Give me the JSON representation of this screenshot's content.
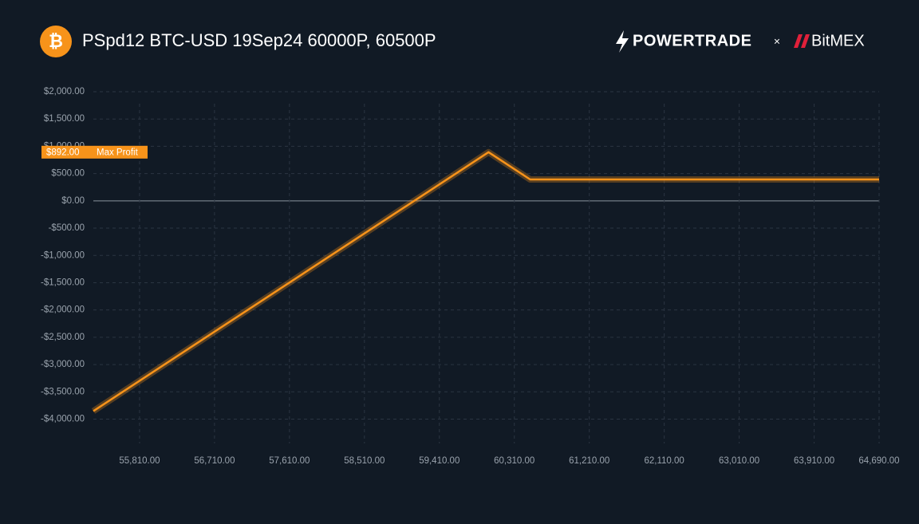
{
  "header": {
    "icon": "₿",
    "brand_left": "POWERTRADE",
    "separator": "×",
    "brand_right": "BitMEX"
  },
  "chart_data": {
    "type": "line",
    "title": "PSpd12 BTC-USD 19Sep24 60000P, 60500P",
    "x": [
      55255,
      60000,
      60500,
      64690
    ],
    "series": [
      {
        "name": "PSpd12 BTC-USD 19Sep24 60000P, 60500P",
        "color": "#f7931a",
        "values": [
          -3853,
          892,
          392,
          392
        ]
      }
    ],
    "xlim": [
      55255,
      64690
    ],
    "ylim": [
      -4300,
      2000
    ],
    "xticks": [
      {
        "value": 55810,
        "label": "55,810.00"
      },
      {
        "value": 56710,
        "label": "56,710.00"
      },
      {
        "value": 57610,
        "label": "57,610.00"
      },
      {
        "value": 58510,
        "label": "58,510.00"
      },
      {
        "value": 59410,
        "label": "59,410.00"
      },
      {
        "value": 60310,
        "label": "60,310.00"
      },
      {
        "value": 61210,
        "label": "61,210.00"
      },
      {
        "value": 62110,
        "label": "62,110.00"
      },
      {
        "value": 63010,
        "label": "63,010.00"
      },
      {
        "value": 63910,
        "label": "63,910.00"
      },
      {
        "value": 64690,
        "label": "64,690.00"
      }
    ],
    "yticks": [
      {
        "value": 2000,
        "label": "$2,000.00"
      },
      {
        "value": 1500,
        "label": "$1,500.00"
      },
      {
        "value": 1000,
        "label": "$1,000.00"
      },
      {
        "value": 500,
        "label": "$500.00"
      },
      {
        "value": 0,
        "label": "$0.00"
      },
      {
        "value": -500,
        "label": "-$500.00"
      },
      {
        "value": -1000,
        "label": "-$1,000.00"
      },
      {
        "value": -1500,
        "label": "-$1,500.00"
      },
      {
        "value": -2000,
        "label": "-$2,000.00"
      },
      {
        "value": -2500,
        "label": "-$2,500.00"
      },
      {
        "value": -3000,
        "label": "-$3,000.00"
      },
      {
        "value": -3500,
        "label": "-$3,500.00"
      },
      {
        "value": -4000,
        "label": "-$4,000.00"
      }
    ],
    "grid": true,
    "annotations": [
      {
        "value": 892,
        "label": "$892.00",
        "text": "Max Profit"
      }
    ]
  }
}
